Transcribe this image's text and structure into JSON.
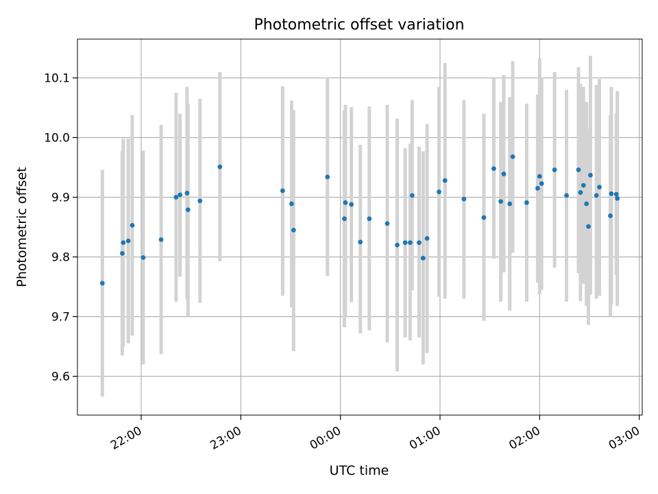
{
  "colors": {
    "point": "#1f77b4",
    "errorbar": "#d3d3d3",
    "grid": "#b0b0b0",
    "axis": "#000000"
  },
  "chart_data": {
    "type": "scatter",
    "title": "Photometric offset variation",
    "xlabel": "UTC time",
    "ylabel": "Photometric offset",
    "x_unit": "hours since 00:00 UTC",
    "x_ticks": [
      {
        "value": -2,
        "label": "22:00"
      },
      {
        "value": -1,
        "label": "23:00"
      },
      {
        "value": 0,
        "label": "00:00"
      },
      {
        "value": 1,
        "label": "01:00"
      },
      {
        "value": 2,
        "label": "02:00"
      },
      {
        "value": 3,
        "label": "03:00"
      }
    ],
    "y_ticks": [
      9.6,
      9.7,
      9.8,
      9.9,
      10.0,
      10.1
    ],
    "xlim": [
      -2.64,
      3.03
    ],
    "ylim": [
      9.535,
      10.165
    ],
    "grid": true,
    "series": [
      {
        "points": [
          {
            "x": -2.39,
            "y": 9.756,
            "lo": 9.566,
            "hi": 9.946
          },
          {
            "x": -2.19,
            "y": 9.806,
            "lo": 9.635,
            "hi": 9.977
          },
          {
            "x": -2.18,
            "y": 9.824,
            "lo": 9.65,
            "hi": 9.998
          },
          {
            "x": -2.13,
            "y": 9.827,
            "lo": 9.655,
            "hi": 9.998
          },
          {
            "x": -2.09,
            "y": 9.853,
            "lo": 9.668,
            "hi": 10.038
          },
          {
            "x": -1.98,
            "y": 9.799,
            "lo": 9.62,
            "hi": 9.978
          },
          {
            "x": -1.8,
            "y": 9.829,
            "lo": 9.637,
            "hi": 10.021
          },
          {
            "x": -1.65,
            "y": 9.9,
            "lo": 9.725,
            "hi": 10.075
          },
          {
            "x": -1.61,
            "y": 9.904,
            "lo": 9.767,
            "hi": 10.04
          },
          {
            "x": -1.54,
            "y": 9.907,
            "lo": 9.73,
            "hi": 10.085
          },
          {
            "x": -1.53,
            "y": 9.879,
            "lo": 9.7,
            "hi": 10.057
          },
          {
            "x": -1.41,
            "y": 9.894,
            "lo": 9.723,
            "hi": 10.065
          },
          {
            "x": -1.21,
            "y": 9.951,
            "lo": 9.793,
            "hi": 10.11
          },
          {
            "x": -0.58,
            "y": 9.911,
            "lo": 9.735,
            "hi": 10.086
          },
          {
            "x": -0.49,
            "y": 9.889,
            "lo": 9.715,
            "hi": 10.062
          },
          {
            "x": -0.47,
            "y": 9.845,
            "lo": 9.642,
            "hi": 10.046
          },
          {
            "x": -0.13,
            "y": 9.934,
            "lo": 9.768,
            "hi": 10.1
          },
          {
            "x": 0.04,
            "y": 9.864,
            "lo": 9.682,
            "hi": 10.046
          },
          {
            "x": 0.05,
            "y": 9.891,
            "lo": 9.7,
            "hi": 10.055
          },
          {
            "x": 0.11,
            "y": 9.888,
            "lo": 9.724,
            "hi": 10.051
          },
          {
            "x": 0.2,
            "y": 9.825,
            "lo": 9.672,
            "hi": 9.988
          },
          {
            "x": 0.29,
            "y": 9.864,
            "lo": 9.677,
            "hi": 10.052
          },
          {
            "x": 0.47,
            "y": 9.856,
            "lo": 9.657,
            "hi": 10.055
          },
          {
            "x": 0.57,
            "y": 9.82,
            "lo": 9.608,
            "hi": 10.032
          },
          {
            "x": 0.65,
            "y": 9.824,
            "lo": 9.665,
            "hi": 9.982
          },
          {
            "x": 0.7,
            "y": 9.824,
            "lo": 9.66,
            "hi": 9.99
          },
          {
            "x": 0.72,
            "y": 9.903,
            "lo": 9.744,
            "hi": 10.063
          },
          {
            "x": 0.79,
            "y": 9.824,
            "lo": 9.665,
            "hi": 9.985
          },
          {
            "x": 0.83,
            "y": 9.798,
            "lo": 9.62,
            "hi": 9.977
          },
          {
            "x": 0.87,
            "y": 9.831,
            "lo": 9.639,
            "hi": 10.023
          },
          {
            "x": 0.99,
            "y": 9.909,
            "lo": 9.733,
            "hi": 10.085
          },
          {
            "x": 1.05,
            "y": 9.928,
            "lo": 9.73,
            "hi": 10.125
          },
          {
            "x": 1.24,
            "y": 9.897,
            "lo": 9.73,
            "hi": 10.063
          },
          {
            "x": 1.44,
            "y": 9.866,
            "lo": 9.693,
            "hi": 10.04
          },
          {
            "x": 1.54,
            "y": 9.948,
            "lo": 9.797,
            "hi": 10.1
          },
          {
            "x": 1.61,
            "y": 9.893,
            "lo": 9.725,
            "hi": 10.06
          },
          {
            "x": 1.64,
            "y": 9.939,
            "lo": 9.774,
            "hi": 10.105
          },
          {
            "x": 1.7,
            "y": 9.889,
            "lo": 9.71,
            "hi": 10.068
          },
          {
            "x": 1.73,
            "y": 9.968,
            "lo": 9.807,
            "hi": 10.128
          },
          {
            "x": 1.87,
            "y": 9.891,
            "lo": 9.725,
            "hi": 10.057
          },
          {
            "x": 1.98,
            "y": 9.915,
            "lo": 9.757,
            "hi": 10.072
          },
          {
            "x": 2.0,
            "y": 9.935,
            "lo": 9.737,
            "hi": 10.133
          },
          {
            "x": 2.02,
            "y": 9.923,
            "lo": 9.745,
            "hi": 10.1
          },
          {
            "x": 2.15,
            "y": 9.946,
            "lo": 9.782,
            "hi": 10.11
          },
          {
            "x": 2.27,
            "y": 9.903,
            "lo": 9.725,
            "hi": 10.08
          },
          {
            "x": 2.39,
            "y": 9.946,
            "lo": 9.773,
            "hi": 10.118
          },
          {
            "x": 2.41,
            "y": 9.908,
            "lo": 9.726,
            "hi": 10.09
          },
          {
            "x": 2.44,
            "y": 9.92,
            "lo": 9.755,
            "hi": 10.085
          },
          {
            "x": 2.47,
            "y": 9.889,
            "lo": 9.718,
            "hi": 10.06
          },
          {
            "x": 2.49,
            "y": 9.851,
            "lo": 9.686,
            "hi": 10.015
          },
          {
            "x": 2.51,
            "y": 9.937,
            "lo": 9.737,
            "hi": 10.137
          },
          {
            "x": 2.57,
            "y": 9.903,
            "lo": 9.73,
            "hi": 10.088
          },
          {
            "x": 2.6,
            "y": 9.917,
            "lo": 9.735,
            "hi": 10.098
          },
          {
            "x": 2.71,
            "y": 9.869,
            "lo": 9.7,
            "hi": 10.038
          },
          {
            "x": 2.72,
            "y": 9.906,
            "lo": 9.72,
            "hi": 10.085
          },
          {
            "x": 2.77,
            "y": 9.905,
            "lo": 9.77,
            "hi": 10.04
          },
          {
            "x": 2.78,
            "y": 9.898,
            "lo": 9.718,
            "hi": 10.078
          }
        ]
      }
    ]
  }
}
